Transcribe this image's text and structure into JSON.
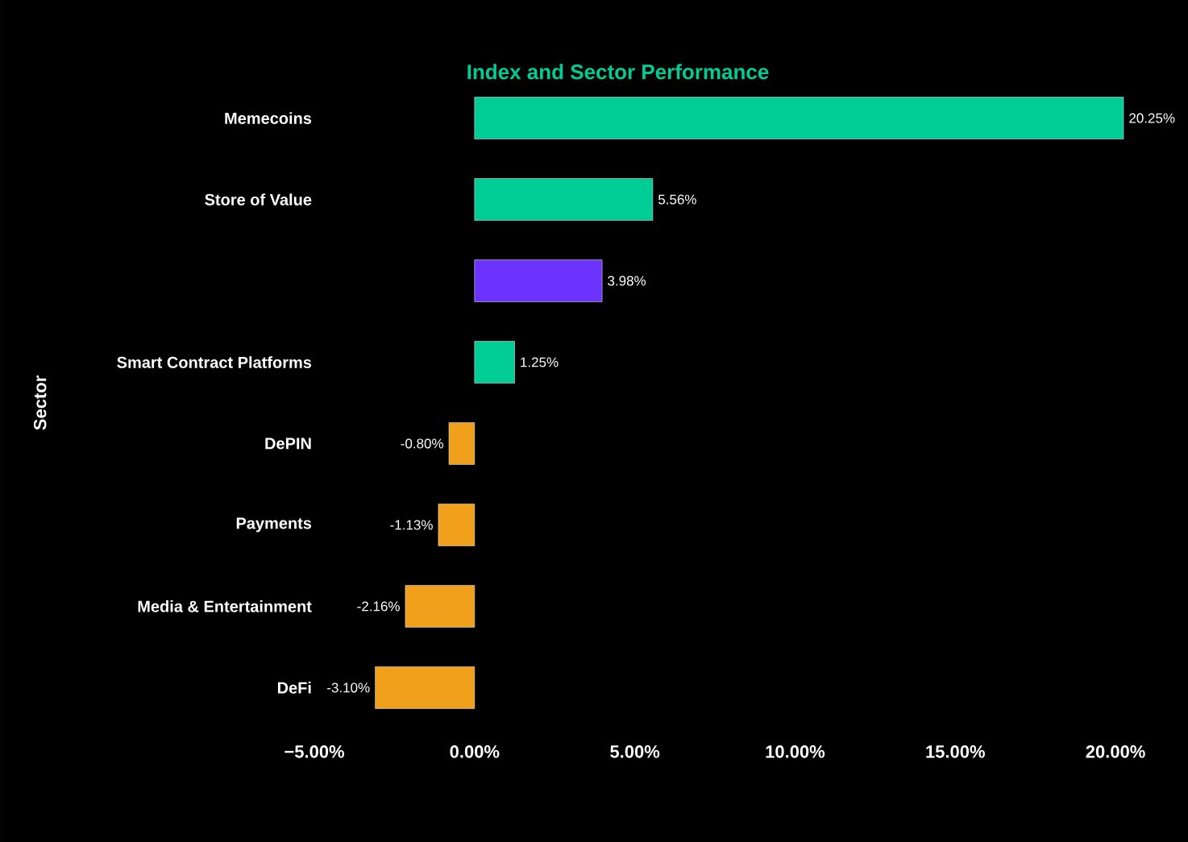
{
  "chart_data": {
    "type": "bar",
    "orientation": "horizontal",
    "title": "Index and Sector Performance",
    "ylabel": "Sector",
    "categories": [
      "Memecoins",
      "Store of Value",
      null,
      "Smart Contract Platforms",
      "DePIN",
      "Payments",
      "Media & Entertainment",
      "DeFi"
    ],
    "values": [
      20.25,
      5.56,
      3.98,
      1.25,
      -0.8,
      -1.13,
      -2.16,
      -3.1
    ],
    "value_labels": [
      "20.25%",
      "5.56%",
      "3.98%",
      "1.25%",
      "-0.80%",
      "-1.13%",
      "-2.16%",
      "-3.10%"
    ],
    "colors": [
      "#00cc96",
      "#00cc96",
      "#6c33ff",
      "#00cc96",
      "#f0a01a",
      "#f0a01a",
      "#f0a01a",
      "#f0a01a"
    ],
    "xlim": [
      -5,
      20.25
    ],
    "xticks": [
      {
        "value": -5,
        "label": "−5.00%"
      },
      {
        "value": 0,
        "label": "0.00%"
      },
      {
        "value": 5,
        "label": "5.00%"
      },
      {
        "value": 10,
        "label": "10.00%"
      },
      {
        "value": 15,
        "label": "15.00%"
      },
      {
        "value": 20,
        "label": "20.00%"
      }
    ]
  }
}
